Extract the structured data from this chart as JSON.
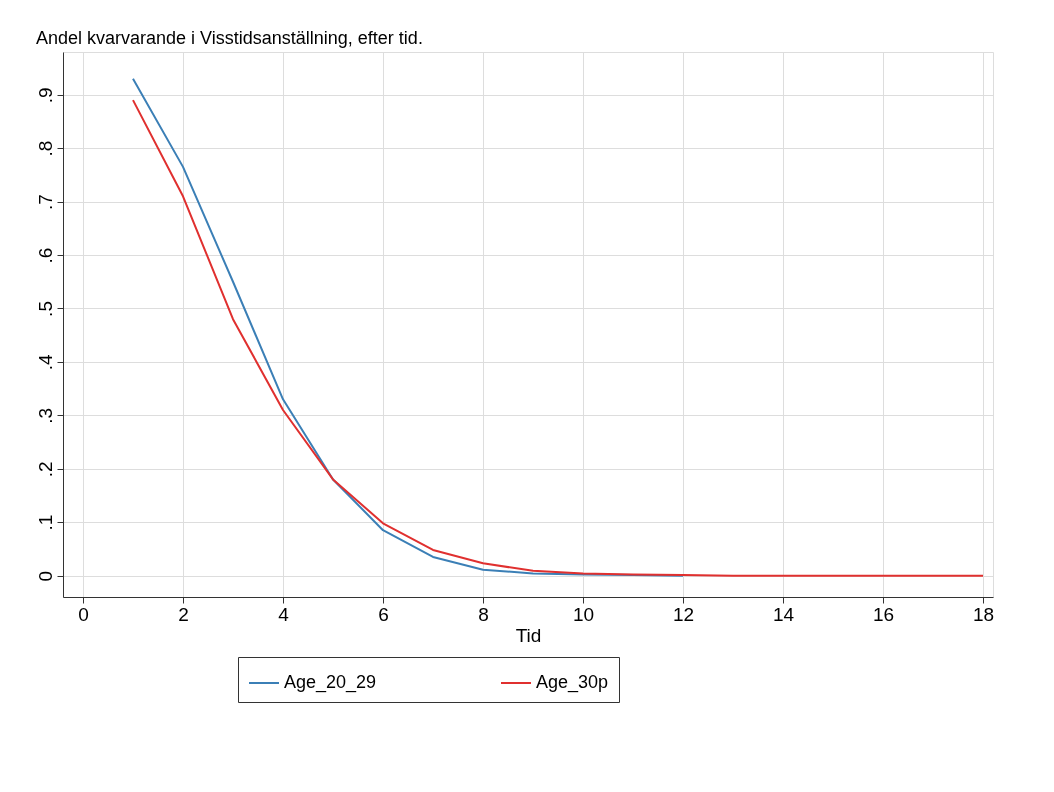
{
  "chart_data": {
    "type": "line",
    "title": "Andel kvarvarande i Visstidsanställning, efter tid.",
    "xlabel": "Tid",
    "x": [
      1,
      2,
      3,
      4,
      5,
      6,
      7,
      8,
      9,
      10,
      11,
      12,
      13,
      14,
      15,
      16,
      17,
      18
    ],
    "series": [
      {
        "name": "Age_20_29",
        "color": "#3b7fb6",
        "values": [
          0.93,
          0.765,
          0.55,
          0.33,
          0.18,
          0.085,
          0.035,
          0.011,
          0.004,
          0.002,
          0.001,
          0,
          null,
          null,
          null,
          null,
          null,
          null
        ]
      },
      {
        "name": "Age_30p",
        "color": "#e0302f",
        "values": [
          0.89,
          0.71,
          0.48,
          0.31,
          0.18,
          0.098,
          0.048,
          0.023,
          0.009,
          0.004,
          0.002,
          0.001,
          0,
          0,
          0,
          0,
          0,
          0
        ]
      }
    ],
    "xlim": [
      -0.4,
      18.2
    ],
    "xticks": [
      0,
      2,
      4,
      6,
      8,
      10,
      12,
      14,
      16,
      18
    ],
    "ylim": [
      -0.04,
      0.98
    ],
    "yticks": [
      0,
      {
        "value": 0.1,
        "label": ".1"
      },
      {
        "value": 0.2,
        "label": ".2"
      },
      {
        "value": 0.3,
        "label": ".3"
      },
      {
        "value": 0.4,
        "label": ".4"
      },
      {
        "value": 0.5,
        "label": ".5"
      },
      {
        "value": 0.6,
        "label": ".6"
      },
      {
        "value": 0.7,
        "label": ".7"
      },
      {
        "value": 0.8,
        "label": ".8"
      },
      {
        "value": 0.9,
        "label": ".9"
      }
    ],
    "grid": true,
    "legend": "bottom",
    "marker": "none",
    "line_style": "solid"
  }
}
